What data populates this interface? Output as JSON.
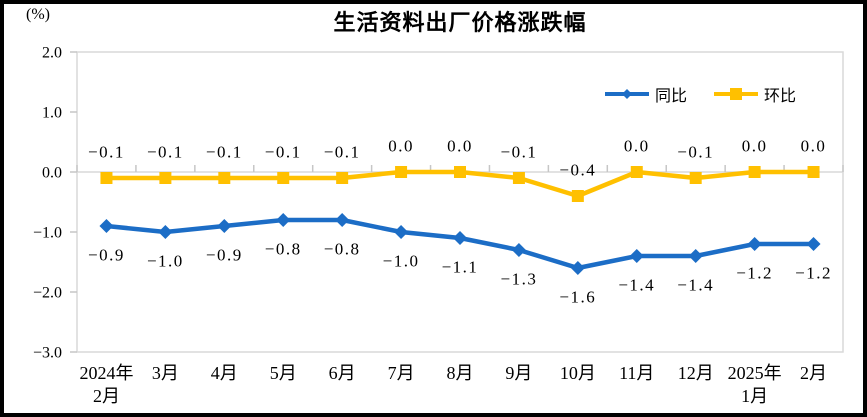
{
  "chart_data": {
    "type": "line",
    "title": "生活资料出厂价格涨跌幅",
    "unit_label": "(%)",
    "categories": [
      [
        "2024年",
        "2月"
      ],
      [
        "3月"
      ],
      [
        "4月"
      ],
      [
        "5月"
      ],
      [
        "6月"
      ],
      [
        "7月"
      ],
      [
        "8月"
      ],
      [
        "9月"
      ],
      [
        "10月"
      ],
      [
        "11月"
      ],
      [
        "12月"
      ],
      [
        "2025年",
        "1月"
      ],
      [
        "2月"
      ]
    ],
    "series": [
      {
        "id": "yoy",
        "name": "同比",
        "color": "#1C6DC6",
        "marker": "diamond",
        "label_position": "below",
        "values": [
          -0.9,
          -1.0,
          -0.9,
          -0.8,
          -0.8,
          -1.0,
          -1.1,
          -1.3,
          -1.6,
          -1.4,
          -1.4,
          -1.2,
          -1.2
        ]
      },
      {
        "id": "mom",
        "name": "环比",
        "color": "#FFC000",
        "marker": "square",
        "label_position": "above",
        "values": [
          -0.1,
          -0.1,
          -0.1,
          -0.1,
          -0.1,
          0.0,
          0.0,
          -0.1,
          -0.4,
          0.0,
          -0.1,
          0.0,
          0.0
        ]
      }
    ],
    "y_ticks": [
      "2.0",
      "1.0",
      "0.0",
      "-1.0",
      "-2.0",
      "-3.0"
    ],
    "ylim": [
      -3.0,
      2.0
    ],
    "grid": "zero-line-only",
    "legend_position": "inside-top-right",
    "axis_color": "#D9D9D9",
    "tick_color": "#C6C6C6",
    "label_color": "#000000",
    "frame_color": "#000000"
  }
}
